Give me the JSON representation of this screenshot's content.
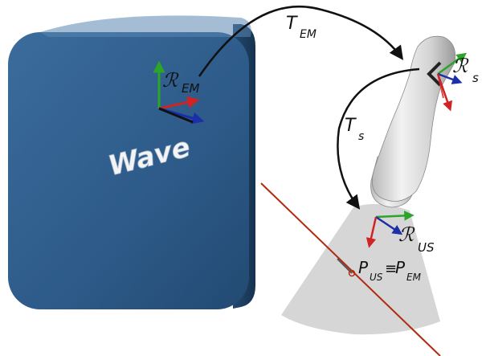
{
  "device": {
    "brand": "Wave"
  },
  "frames": {
    "em": {
      "symbol": "ℛ",
      "subscript": "EM"
    },
    "sensor": {
      "symbol": "ℛ",
      "subscript": "s"
    },
    "us": {
      "symbol": "ℛ",
      "subscript": "US"
    }
  },
  "transforms": {
    "em": {
      "symbol": "T",
      "subscript": "EM"
    },
    "s": {
      "symbol": "T",
      "subscript": "s"
    }
  },
  "point": {
    "symbol_a": "P",
    "subscript_a": "US",
    "equiv": "≡",
    "symbol_b": "P",
    "subscript_b": "EM"
  },
  "colors": {
    "box_front": "#2d5a88",
    "box_side": "#1f4266",
    "axis_x": "#d02424",
    "axis_y": "#2aa52a",
    "axis_z": "#1a2fa8",
    "needle": "#b02a10",
    "probe": "#d9d9d9",
    "beam": "#d6d6d6"
  }
}
